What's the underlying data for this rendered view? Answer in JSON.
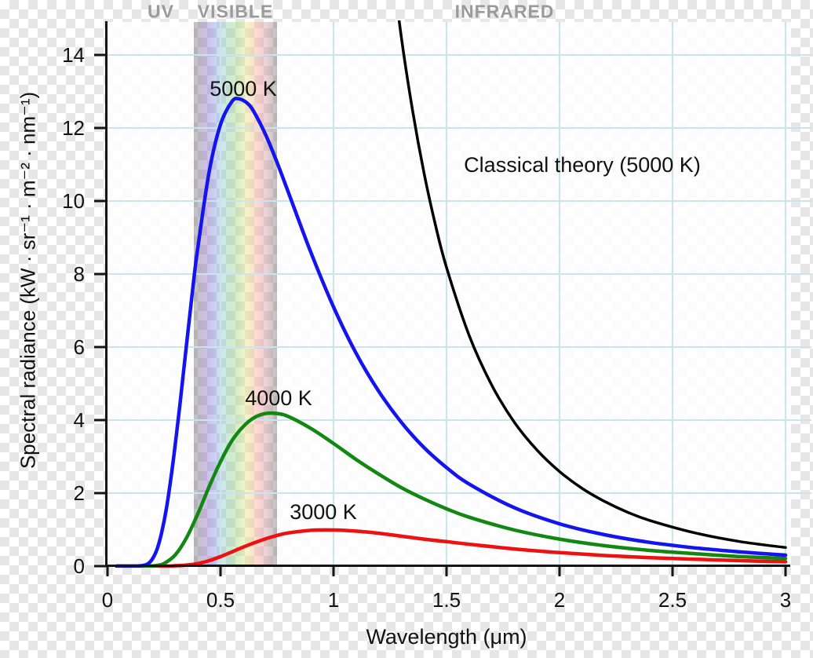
{
  "figure": {
    "spectrum_bands": {
      "uv": "UV",
      "visible": "VISIBLE",
      "infrared": "INFRARED"
    },
    "curve_labels": {
      "planck_5000": "5000 K",
      "planck_4000": "4000 K",
      "planck_3000": "3000 K",
      "classical": "Classical theory (5000 K)"
    },
    "axis_titles": {
      "x": "Wavelength (μm)",
      "y": "Spectral radiance (kW · sr⁻¹ · m⁻² · nm⁻¹)"
    },
    "colors": {
      "grid": "#c9e4ef",
      "axis": "#151515",
      "band_label_gray": "#9a9a9a",
      "checker_gray": "#e7e7e7",
      "checker_white": "#ffffff"
    }
  },
  "chart_data": {
    "type": "line",
    "title": "",
    "xlabel": "Wavelength (μm)",
    "ylabel": "Spectral radiance (kW · sr⁻¹ · m⁻² · nm⁻¹)",
    "xlim": [
      0,
      3
    ],
    "ylim": [
      0,
      14.9
    ],
    "grid": true,
    "legend": "inline-labels",
    "x_ticks": {
      "values": [
        0,
        0.5,
        1,
        1.5,
        2,
        2.5,
        3
      ],
      "labels": [
        "0",
        "0.5",
        "1",
        "1.5",
        "2",
        "2.5",
        "3"
      ]
    },
    "y_ticks": {
      "values": [
        0,
        2,
        4,
        6,
        8,
        10,
        12,
        14
      ],
      "labels": [
        "0",
        "2",
        "4",
        "6",
        "8",
        "10",
        "12",
        "14"
      ]
    },
    "visible_band_um": [
      0.38,
      0.75
    ],
    "band_annotations": [
      "UV",
      "VISIBLE",
      "INFRARED"
    ],
    "series": [
      {
        "name": "3000 K",
        "color": "#ee1111",
        "points": [
          [
            0.04,
            0
          ],
          [
            0.25,
            0
          ],
          [
            0.3,
            0.01
          ],
          [
            0.35,
            0.03
          ],
          [
            0.4,
            0.07
          ],
          [
            0.45,
            0.15
          ],
          [
            0.5,
            0.26
          ],
          [
            0.55,
            0.39
          ],
          [
            0.6,
            0.52
          ],
          [
            0.65,
            0.64
          ],
          [
            0.7,
            0.75
          ],
          [
            0.75,
            0.84
          ],
          [
            0.8,
            0.91
          ],
          [
            0.9,
            0.98
          ],
          [
            1.0,
            0.99
          ],
          [
            1.1,
            0.96
          ],
          [
            1.2,
            0.9
          ],
          [
            1.3,
            0.82
          ],
          [
            1.4,
            0.74
          ],
          [
            1.5,
            0.67
          ],
          [
            1.6,
            0.6
          ],
          [
            1.8,
            0.47
          ],
          [
            2.0,
            0.37
          ],
          [
            2.2,
            0.29
          ],
          [
            2.4,
            0.23
          ],
          [
            2.6,
            0.19
          ],
          [
            2.8,
            0.15
          ],
          [
            3.0,
            0.12
          ]
        ]
      },
      {
        "name": "4000 K",
        "color": "#128712",
        "points": [
          [
            0.04,
            0
          ],
          [
            0.18,
            0
          ],
          [
            0.22,
            0.02
          ],
          [
            0.25,
            0.07
          ],
          [
            0.3,
            0.31
          ],
          [
            0.35,
            0.78
          ],
          [
            0.4,
            1.44
          ],
          [
            0.45,
            2.18
          ],
          [
            0.5,
            2.86
          ],
          [
            0.55,
            3.43
          ],
          [
            0.6,
            3.82
          ],
          [
            0.65,
            4.07
          ],
          [
            0.7,
            4.18
          ],
          [
            0.75,
            4.18
          ],
          [
            0.8,
            4.1
          ],
          [
            0.9,
            3.77
          ],
          [
            1.0,
            3.36
          ],
          [
            1.1,
            2.92
          ],
          [
            1.2,
            2.52
          ],
          [
            1.3,
            2.15
          ],
          [
            1.4,
            1.84
          ],
          [
            1.5,
            1.57
          ],
          [
            1.6,
            1.34
          ],
          [
            1.8,
            0.99
          ],
          [
            2.0,
            0.74
          ],
          [
            2.2,
            0.56
          ],
          [
            2.4,
            0.43
          ],
          [
            2.6,
            0.34
          ],
          [
            2.8,
            0.26
          ],
          [
            3.0,
            0.21
          ]
        ]
      },
      {
        "name": "5000 K",
        "color": "#1414f0",
        "points": [
          [
            0.04,
            0
          ],
          [
            0.1,
            0
          ],
          [
            0.15,
            0.01
          ],
          [
            0.18,
            0.07
          ],
          [
            0.2,
            0.21
          ],
          [
            0.22,
            0.48
          ],
          [
            0.24,
            0.93
          ],
          [
            0.26,
            1.56
          ],
          [
            0.28,
            2.38
          ],
          [
            0.3,
            3.35
          ],
          [
            0.32,
            4.41
          ],
          [
            0.35,
            6.09
          ],
          [
            0.38,
            7.75
          ],
          [
            0.4,
            8.74
          ],
          [
            0.45,
            10.81
          ],
          [
            0.5,
            12.1
          ],
          [
            0.55,
            12.72
          ],
          [
            0.58,
            12.8
          ],
          [
            0.62,
            12.67
          ],
          [
            0.65,
            12.42
          ],
          [
            0.7,
            11.81
          ],
          [
            0.75,
            11.06
          ],
          [
            0.8,
            10.24
          ],
          [
            0.9,
            8.59
          ],
          [
            1.0,
            7.1
          ],
          [
            1.1,
            5.83
          ],
          [
            1.2,
            4.79
          ],
          [
            1.3,
            3.94
          ],
          [
            1.4,
            3.25
          ],
          [
            1.5,
            2.7
          ],
          [
            1.6,
            2.25
          ],
          [
            1.8,
            1.6
          ],
          [
            2.0,
            1.16
          ],
          [
            2.2,
            0.86
          ],
          [
            2.4,
            0.65
          ],
          [
            2.6,
            0.5
          ],
          [
            2.8,
            0.39
          ],
          [
            3.0,
            0.3
          ]
        ]
      },
      {
        "name": "Classical theory (5000 K)",
        "color": "#000000",
        "points": [
          [
            1.25,
            16.96
          ],
          [
            1.3,
            14.49
          ],
          [
            1.35,
            12.47
          ],
          [
            1.4,
            10.78
          ],
          [
            1.45,
            9.37
          ],
          [
            1.5,
            8.18
          ],
          [
            1.6,
            6.32
          ],
          [
            1.7,
            4.96
          ],
          [
            1.8,
            3.94
          ],
          [
            1.9,
            3.18
          ],
          [
            2.0,
            2.59
          ],
          [
            2.1,
            2.13
          ],
          [
            2.2,
            1.77
          ],
          [
            2.3,
            1.48
          ],
          [
            2.4,
            1.25
          ],
          [
            2.6,
            0.91
          ],
          [
            2.8,
            0.67
          ],
          [
            3.0,
            0.51
          ]
        ]
      }
    ]
  }
}
